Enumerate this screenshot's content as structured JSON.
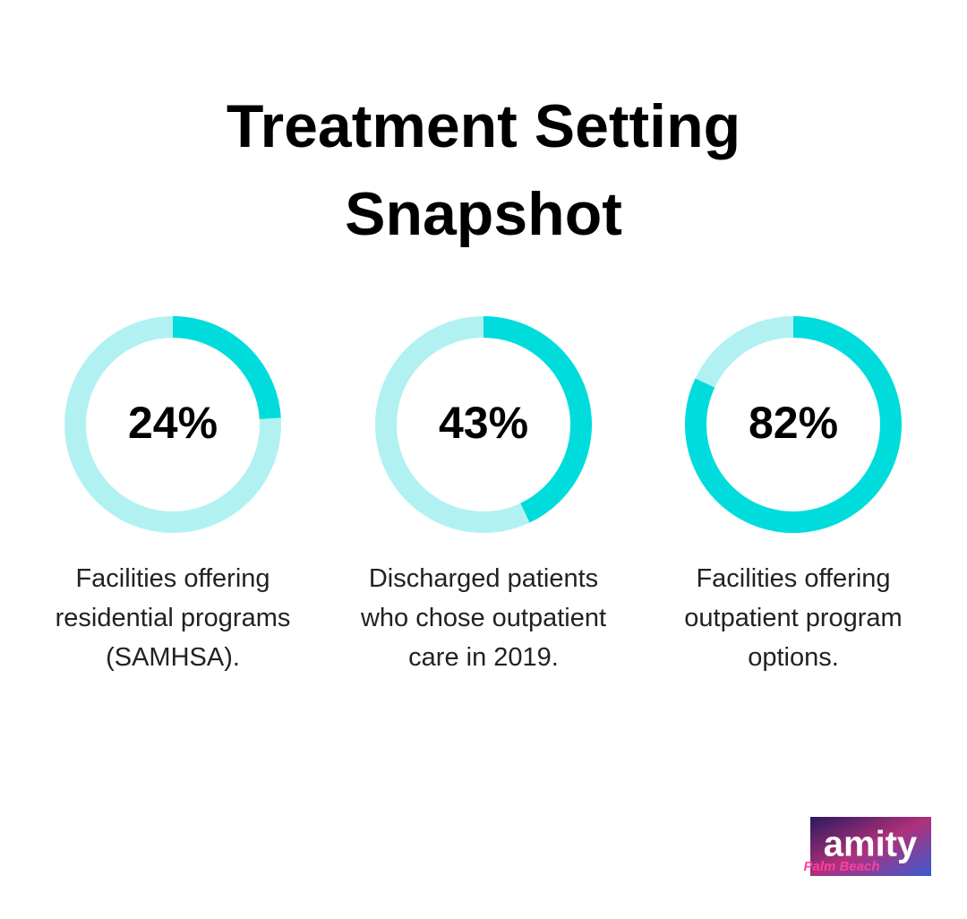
{
  "title": "Treatment Setting Snapshot",
  "chart_data": [
    {
      "type": "donut",
      "values": [
        24
      ],
      "value_labels": [
        "24%"
      ],
      "caption": "Facilities offering residential programs (SAMHSA).",
      "color": "#00dcdc",
      "track_color": "#b2f1f1"
    },
    {
      "type": "donut",
      "values": [
        43
      ],
      "value_labels": [
        "43%"
      ],
      "caption": "Discharged patients who chose outpatient care in 2019.",
      "color": "#00dcdc",
      "track_color": "#b2f1f1"
    },
    {
      "type": "donut",
      "values": [
        82
      ],
      "value_labels": [
        "82%"
      ],
      "caption": "Facilities offering outpatient program options.",
      "color": "#00dcdc",
      "track_color": "#b2f1f1"
    }
  ],
  "logo": {
    "name": "amity",
    "tagline": "Palm Beach"
  }
}
